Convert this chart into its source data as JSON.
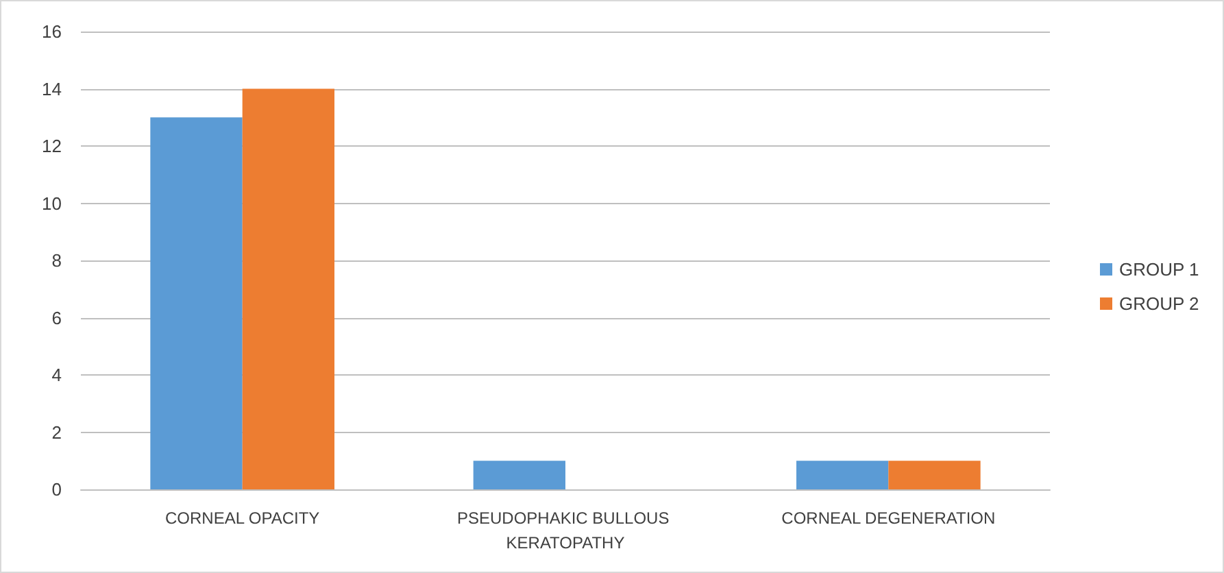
{
  "chart_data": {
    "type": "bar",
    "categories": [
      "CORNEAL OPACITY",
      "PSEUDOPHAKIC BULLOUS KERATOPATHY",
      "CORNEAL DEGENERATION"
    ],
    "series": [
      {
        "name": "GROUP 1",
        "color": "#5b9bd5",
        "values": [
          13,
          1,
          1
        ]
      },
      {
        "name": "GROUP 2",
        "color": "#ed7d31",
        "values": [
          14,
          0,
          1
        ]
      }
    ],
    "ylim": [
      0,
      16
    ],
    "yticks": [
      0,
      2,
      4,
      6,
      8,
      10,
      12,
      14,
      16
    ],
    "grid": "y",
    "legend": "right"
  }
}
